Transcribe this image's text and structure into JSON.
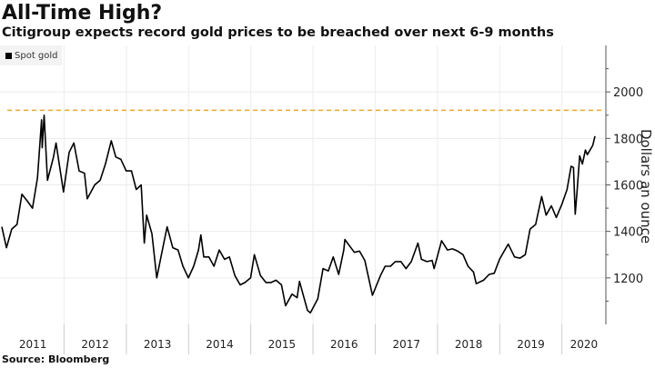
{
  "chart_data": {
    "type": "line",
    "title": "All-Time High?",
    "subtitle": "Citigroup expects record gold prices to be breached over next 6-9 months",
    "source": "Source: Bloomberg",
    "ylabel": "Dollars an ounce",
    "xlabel": "",
    "ylim": [
      1000,
      2200
    ],
    "yticks": [
      1200,
      1400,
      1600,
      1800,
      2000
    ],
    "xticks": [
      "2011",
      "2012",
      "2013",
      "2014",
      "2015",
      "2016",
      "2017",
      "2018",
      "2019",
      "2020"
    ],
    "xlim": [
      "2011-01-01",
      "2020-09-15"
    ],
    "grid": true,
    "legend_position": "top-left",
    "reference_line": {
      "value": 1921,
      "color": "#f0a820",
      "style": "dashed"
    },
    "series": [
      {
        "name": "Spot gold",
        "color": "#000000",
        "points": [
          [
            "2011-01-01",
            1420
          ],
          [
            "2011-01-28",
            1330
          ],
          [
            "2011-02-28",
            1410
          ],
          [
            "2011-03-31",
            1430
          ],
          [
            "2011-04-29",
            1560
          ],
          [
            "2011-05-31",
            1530
          ],
          [
            "2011-06-30",
            1500
          ],
          [
            "2011-07-29",
            1630
          ],
          [
            "2011-08-22",
            1880
          ],
          [
            "2011-08-26",
            1760
          ],
          [
            "2011-09-06",
            1900
          ],
          [
            "2011-09-26",
            1620
          ],
          [
            "2011-10-31",
            1720
          ],
          [
            "2011-11-15",
            1780
          ],
          [
            "2011-12-29",
            1570
          ],
          [
            "2012-01-31",
            1740
          ],
          [
            "2012-02-28",
            1780
          ],
          [
            "2012-03-30",
            1660
          ],
          [
            "2012-04-30",
            1650
          ],
          [
            "2012-05-16",
            1540
          ],
          [
            "2012-06-29",
            1600
          ],
          [
            "2012-07-31",
            1620
          ],
          [
            "2012-08-31",
            1690
          ],
          [
            "2012-10-04",
            1790
          ],
          [
            "2012-10-31",
            1720
          ],
          [
            "2012-11-30",
            1710
          ],
          [
            "2012-12-31",
            1660
          ],
          [
            "2013-01-31",
            1660
          ],
          [
            "2013-02-28",
            1580
          ],
          [
            "2013-03-29",
            1600
          ],
          [
            "2013-04-16",
            1350
          ],
          [
            "2013-04-30",
            1470
          ],
          [
            "2013-05-31",
            1390
          ],
          [
            "2013-06-28",
            1200
          ],
          [
            "2013-07-31",
            1320
          ],
          [
            "2013-08-28",
            1420
          ],
          [
            "2013-09-30",
            1330
          ],
          [
            "2013-10-31",
            1320
          ],
          [
            "2013-11-29",
            1250
          ],
          [
            "2013-12-31",
            1200
          ],
          [
            "2014-01-31",
            1250
          ],
          [
            "2014-02-28",
            1320
          ],
          [
            "2014-03-14",
            1385
          ],
          [
            "2014-03-31",
            1290
          ],
          [
            "2014-04-30",
            1290
          ],
          [
            "2014-05-30",
            1250
          ],
          [
            "2014-06-30",
            1320
          ],
          [
            "2014-07-31",
            1280
          ],
          [
            "2014-08-29",
            1290
          ],
          [
            "2014-09-30",
            1210
          ],
          [
            "2014-10-31",
            1170
          ],
          [
            "2014-11-28",
            1180
          ],
          [
            "2014-12-31",
            1200
          ],
          [
            "2015-01-22",
            1300
          ],
          [
            "2015-02-27",
            1210
          ],
          [
            "2015-03-31",
            1180
          ],
          [
            "2015-04-30",
            1180
          ],
          [
            "2015-05-29",
            1190
          ],
          [
            "2015-06-30",
            1170
          ],
          [
            "2015-07-24",
            1080
          ],
          [
            "2015-08-31",
            1130
          ],
          [
            "2015-09-30",
            1115
          ],
          [
            "2015-10-14",
            1185
          ],
          [
            "2015-11-30",
            1060
          ],
          [
            "2015-12-17",
            1050
          ],
          [
            "2016-01-29",
            1110
          ],
          [
            "2016-02-29",
            1240
          ],
          [
            "2016-03-31",
            1230
          ],
          [
            "2016-04-29",
            1290
          ],
          [
            "2016-05-31",
            1215
          ],
          [
            "2016-06-30",
            1320
          ],
          [
            "2016-07-06",
            1365
          ],
          [
            "2016-08-31",
            1310
          ],
          [
            "2016-09-30",
            1315
          ],
          [
            "2016-10-31",
            1275
          ],
          [
            "2016-11-30",
            1175
          ],
          [
            "2016-12-15",
            1125
          ],
          [
            "2017-01-31",
            1210
          ],
          [
            "2017-02-28",
            1250
          ],
          [
            "2017-03-31",
            1250
          ],
          [
            "2017-04-28",
            1270
          ],
          [
            "2017-05-31",
            1270
          ],
          [
            "2017-06-30",
            1240
          ],
          [
            "2017-07-31",
            1270
          ],
          [
            "2017-09-08",
            1350
          ],
          [
            "2017-09-29",
            1280
          ],
          [
            "2017-10-31",
            1270
          ],
          [
            "2017-11-30",
            1275
          ],
          [
            "2017-12-12",
            1240
          ],
          [
            "2018-01-25",
            1360
          ],
          [
            "2018-02-28",
            1320
          ],
          [
            "2018-03-30",
            1325
          ],
          [
            "2018-04-30",
            1315
          ],
          [
            "2018-05-31",
            1300
          ],
          [
            "2018-06-29",
            1250
          ],
          [
            "2018-07-31",
            1225
          ],
          [
            "2018-08-16",
            1175
          ],
          [
            "2018-09-28",
            1190
          ],
          [
            "2018-10-31",
            1215
          ],
          [
            "2018-11-30",
            1220
          ],
          [
            "2018-12-31",
            1280
          ],
          [
            "2019-01-31",
            1320
          ],
          [
            "2019-02-20",
            1345
          ],
          [
            "2019-03-29",
            1290
          ],
          [
            "2019-04-30",
            1285
          ],
          [
            "2019-05-31",
            1300
          ],
          [
            "2019-06-28",
            1410
          ],
          [
            "2019-07-31",
            1430
          ],
          [
            "2019-09-04",
            1550
          ],
          [
            "2019-09-30",
            1470
          ],
          [
            "2019-10-31",
            1510
          ],
          [
            "2019-11-29",
            1460
          ],
          [
            "2019-12-31",
            1515
          ],
          [
            "2020-01-31",
            1580
          ],
          [
            "2020-02-24",
            1680
          ],
          [
            "2020-03-09",
            1675
          ],
          [
            "2020-03-19",
            1474
          ],
          [
            "2020-03-31",
            1580
          ],
          [
            "2020-04-14",
            1725
          ],
          [
            "2020-04-30",
            1690
          ],
          [
            "2020-05-18",
            1750
          ],
          [
            "2020-05-29",
            1730
          ],
          [
            "2020-06-30",
            1770
          ],
          [
            "2020-07-13",
            1810
          ]
        ]
      }
    ]
  }
}
